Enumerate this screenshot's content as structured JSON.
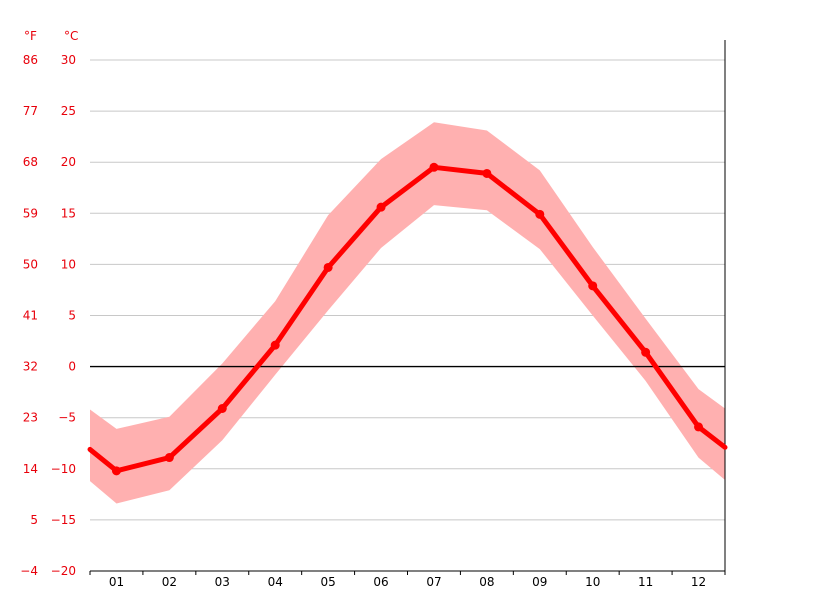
{
  "chart_data": {
    "type": "line",
    "title": "",
    "xlabel": "",
    "ylabel": "",
    "units": {
      "fahrenheit": "°F",
      "celsius": "°C"
    },
    "categories": [
      "01",
      "02",
      "03",
      "04",
      "05",
      "06",
      "07",
      "08",
      "09",
      "10",
      "11",
      "12"
    ],
    "yticks_c": [
      "30",
      "25",
      "20",
      "15",
      "10",
      "5",
      "0",
      "−5",
      "−10",
      "−15",
      "−20"
    ],
    "yticks_f": [
      "86",
      "77",
      "68",
      "59",
      "50",
      "41",
      "32",
      "23",
      "14",
      "5",
      "−4"
    ],
    "ylim_c": [
      -20,
      30
    ],
    "grid": true,
    "series": [
      {
        "role": "mean",
        "values": [
          -10.2,
          -8.9,
          -4.1,
          2.1,
          9.7,
          15.6,
          19.5,
          18.9,
          14.9,
          7.9,
          1.4,
          -5.9
        ],
        "edge_left": -8.1,
        "edge_right": -7.9
      },
      {
        "role": "max",
        "values": [
          -6.1,
          -4.9,
          0.3,
          6.4,
          14.8,
          20.3,
          23.9,
          23.1,
          19.2,
          11.7,
          4.7,
          -2.2
        ],
        "edge_left": -4.2,
        "edge_right": -4.1
      },
      {
        "role": "min",
        "values": [
          -13.4,
          -12.1,
          -7.2,
          -0.8,
          5.5,
          11.6,
          15.8,
          15.3,
          11.5,
          5.0,
          -1.4,
          -8.9
        ],
        "edge_left": -11.2,
        "edge_right": -11.1
      }
    ],
    "colors": {
      "mean_line": "#ff0000",
      "band": "#ffb0b0",
      "tick_text": "#e8000b",
      "grid": "#c8c8c8"
    }
  }
}
